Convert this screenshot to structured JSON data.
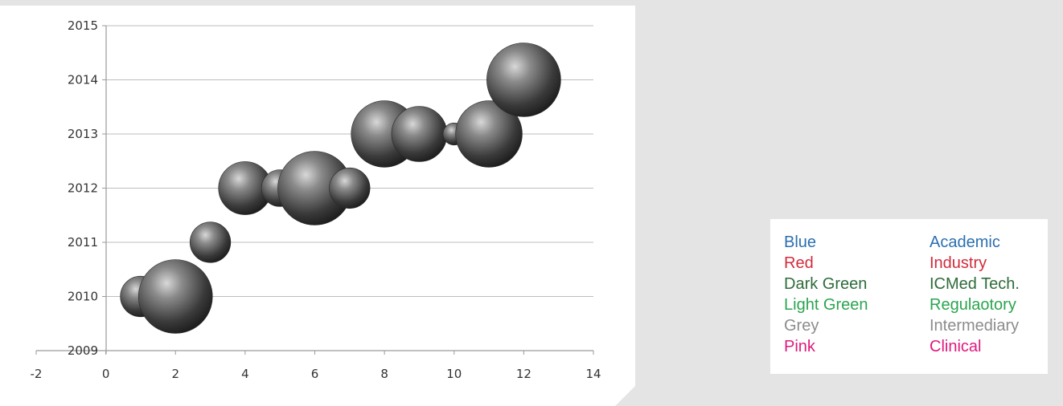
{
  "chart_data": {
    "type": "bubble",
    "x": [
      1,
      2,
      3,
      4,
      5,
      6,
      7,
      8,
      9,
      10,
      11,
      12
    ],
    "y": [
      2010,
      2010,
      2011,
      2012,
      2012,
      2012,
      2012,
      2013,
      2013,
      2013,
      2013,
      2014
    ],
    "size": [
      0.55,
      1.0,
      0.55,
      0.72,
      0.5,
      1.0,
      0.55,
      0.9,
      0.75,
      0.3,
      0.9,
      1.0
    ],
    "xlim": [
      -2,
      14
    ],
    "ylim": [
      2009,
      2015
    ],
    "x_ticks": [
      "-2",
      "0",
      "2",
      "4",
      "6",
      "8",
      "10",
      "12",
      "14"
    ],
    "y_ticks": [
      "2009",
      "2010",
      "2011",
      "2012",
      "2013",
      "2014",
      "2015"
    ],
    "grid": true,
    "bubble_color": "#555555"
  },
  "legend": {
    "rows": [
      {
        "color_name": "Blue",
        "group": "Academic",
        "hex": "#2b6fb0"
      },
      {
        "color_name": "Red",
        "group": "Industry",
        "hex": "#d02c3c"
      },
      {
        "color_name": "Dark Green",
        "group": "ICMed Tech.",
        "hex": "#2e6b3a"
      },
      {
        "color_name": "Light Green",
        "group": "Regulaotory",
        "hex": "#2aa54f"
      },
      {
        "color_name": "Grey",
        "group": "Intermediary",
        "hex": "#8c8c8c"
      },
      {
        "color_name": "Pink",
        "group": "Clinical",
        "hex": "#e0197e"
      }
    ]
  }
}
